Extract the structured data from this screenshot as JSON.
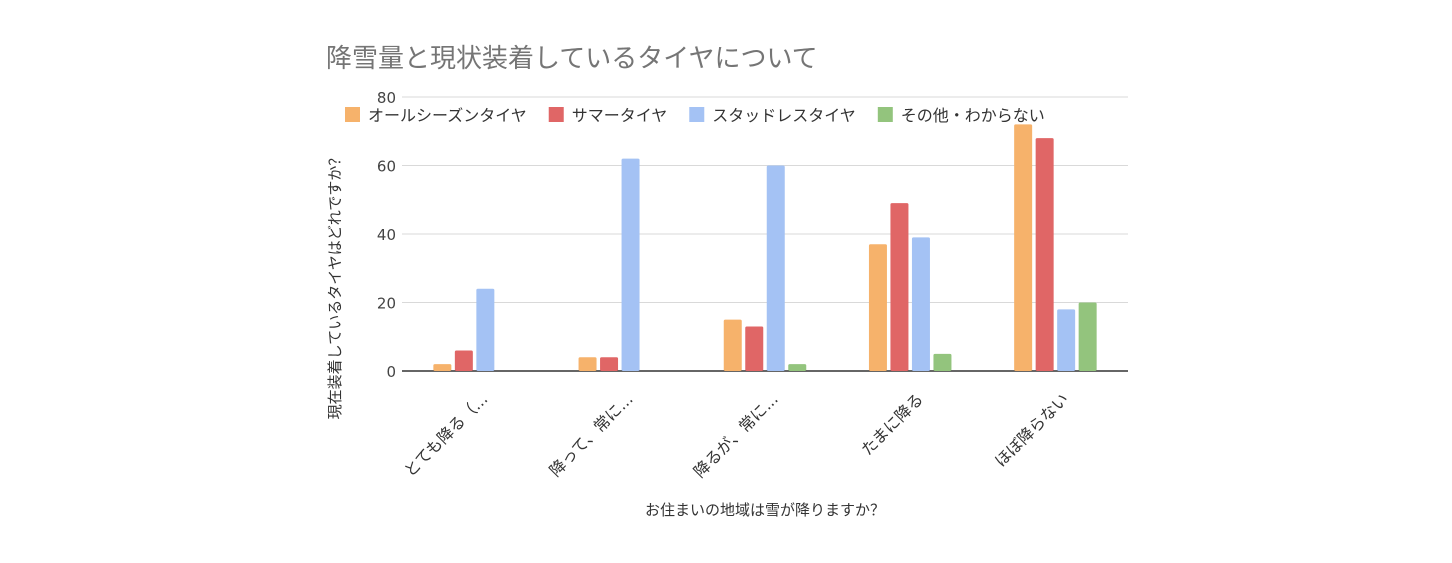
{
  "chart_data": {
    "type": "bar",
    "title": "降雪量と現状装着しているタイヤについて",
    "xlabel": "お住まいの地域は雪が降りますか？",
    "ylabel": "現在装着しているタイヤはどれですか？",
    "categories": [
      "とても降る（...",
      "降って、常に...",
      "降るが、常に...",
      "たまに降る",
      "ほぼ降らない"
    ],
    "series": [
      {
        "name": "オールシーズンタイヤ",
        "color": "#f6b26b",
        "values": [
          2,
          4,
          15,
          37,
          72
        ]
      },
      {
        "name": "サマータイヤ",
        "color": "#e06666",
        "values": [
          6,
          4,
          13,
          49,
          68
        ]
      },
      {
        "name": "スタッドレスタイヤ",
        "color": "#a4c2f4",
        "values": [
          24,
          62,
          60,
          39,
          18
        ]
      },
      {
        "name": "その他・わからない",
        "color": "#93c47d",
        "values": [
          0,
          0,
          2,
          5,
          20
        ]
      }
    ],
    "ylim": [
      0,
      80
    ],
    "yticks": [
      0,
      20,
      40,
      60,
      80
    ],
    "grid": true,
    "legend_position": "top"
  }
}
